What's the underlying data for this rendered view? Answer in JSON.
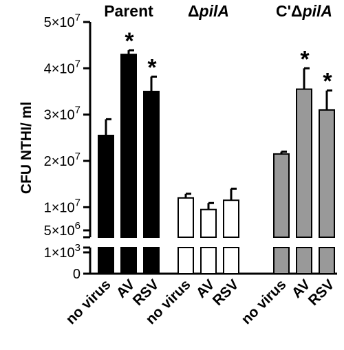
{
  "chart_data": {
    "type": "bar",
    "ylabel": "CFU  NTHI/ ml",
    "y_axis_break": true,
    "yticks_upper": [
      {
        "value": 5000000,
        "label": "5×10",
        "exp": "6"
      },
      {
        "value": 10000000,
        "label": "1×10",
        "exp": "7"
      },
      {
        "value": 20000000,
        "label": "2×10",
        "exp": "7"
      },
      {
        "value": 30000000,
        "label": "3×10",
        "exp": "7"
      },
      {
        "value": 40000000,
        "label": "4×10",
        "exp": "7"
      },
      {
        "value": 50000000,
        "label": "5×10",
        "exp": "7"
      }
    ],
    "yticks_lower": [
      {
        "value": 1000,
        "label": "1×10",
        "exp": "3"
      },
      {
        "value": 0,
        "label": "0",
        "exp": ""
      }
    ],
    "groups": [
      {
        "name_prefix": "",
        "name_italic": "Parent",
        "name_italic_flag": false,
        "fill": "#000000",
        "bars": [
          {
            "category": "no virus",
            "value": 25500000,
            "error": 3500000,
            "significant": false
          },
          {
            "category": "AV",
            "value": 43000000,
            "error": 900000,
            "significant": true
          },
          {
            "category": "RSV",
            "value": 35000000,
            "error": 3200000,
            "significant": true
          }
        ]
      },
      {
        "name_prefix": "Δ",
        "name_italic": "pilA",
        "name_italic_flag": true,
        "fill": "#ffffff",
        "bars": [
          {
            "category": "no virus",
            "value": 12000000,
            "error": 900000,
            "significant": false
          },
          {
            "category": "AV",
            "value": 9500000,
            "error": 1400000,
            "significant": false
          },
          {
            "category": "RSV",
            "value": 11500000,
            "error": 2500000,
            "significant": false
          }
        ]
      },
      {
        "name_prefix": "C'Δ",
        "name_italic": "pilA",
        "name_italic_flag": true,
        "fill": "#999999",
        "bars": [
          {
            "category": "no virus",
            "value": 21500000,
            "error": 500000,
            "significant": false
          },
          {
            "category": "AV",
            "value": 35500000,
            "error": 4500000,
            "significant": true
          },
          {
            "category": "RSV",
            "value": 31000000,
            "error": 4200000,
            "significant": true
          }
        ]
      }
    ],
    "significance_marker": "*"
  }
}
